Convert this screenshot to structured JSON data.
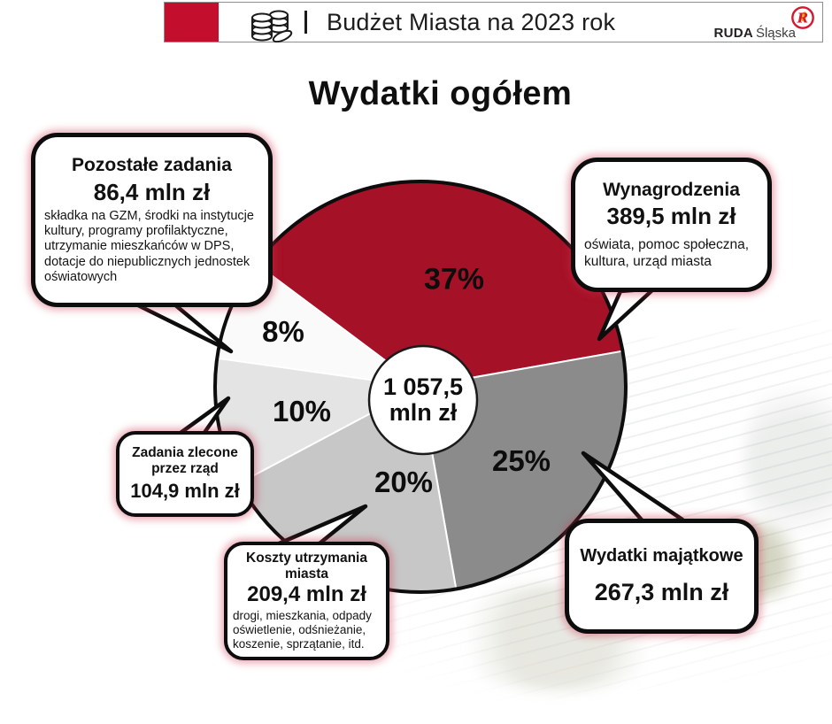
{
  "header": {
    "title": "Budżet Miasta na 2023 rok",
    "separator": "|",
    "accent_color": "#c30e2d",
    "icons": {
      "coins": "stacked-coins-outline",
      "emblem": "ruda-slaska-round-emblem"
    },
    "logo": {
      "brand_bold": "RUDA",
      "brand_light": "Śląska",
      "emblem_letter": "R"
    }
  },
  "page_title": "Wydatki ogółem",
  "chart_data": {
    "type": "pie",
    "title": "Wydatki ogółem",
    "total_label_line1": "1 057,5",
    "total_label_line2": "mln zł",
    "total_value_mln": 1057.5,
    "units": "mln zł",
    "legend_position": "none",
    "labels_inside_slices": true,
    "start_angle_deg": -53.2,
    "slices": [
      {
        "name": "Wynagrodzenia",
        "percent": 37,
        "pct_display": "37%",
        "amount_mln": 389.5,
        "amount": "389,5 mln zł",
        "color": "#a51126",
        "note": "oświata, pomoc społeczna, kultura, urząd miasta"
      },
      {
        "name": "Wydatki majątkowe",
        "percent": 25,
        "pct_display": "25%",
        "amount_mln": 267.3,
        "amount": "267,3 mln zł",
        "color": "#8b8b8b"
      },
      {
        "name": "Koszty utrzymania miasta",
        "percent": 20,
        "pct_display": "20%",
        "amount_mln": 209.4,
        "amount": "209,4 mln zł",
        "color": "#c7c7c7",
        "note": "drogi, mieszkania, odpady oświetlenie, odśnieżanie, koszenie, sprzątanie, itd."
      },
      {
        "name": "Zadania zlecone przez rząd",
        "percent": 10,
        "pct_display": "10%",
        "amount_mln": 104.9,
        "amount": "104,9 mln zł",
        "color": "#e4e4e4"
      },
      {
        "name": "Pozostałe zadania",
        "percent": 8,
        "pct_display": "8%",
        "amount_mln": 86.4,
        "amount": "86,4 mln zł",
        "color": "#fafafa",
        "note": "składka na GZM, środki na instytucje kultury, programy profilaktyczne, utrzymanie mieszkańców w DPS, dotacje do niepublicznych jednostek oświatowych"
      }
    ]
  },
  "callouts": {
    "pozostale": {
      "title": "Pozostałe zadania",
      "amount": "86,4 mln zł",
      "desc": "składka na GZM, środki na instytucje kultury, programy profilaktyczne, utrzymanie mieszkańców w DPS, dotacje do niepublicznych jednostek oświatowych"
    },
    "wynagrodzenia": {
      "title": "Wynagrodzenia",
      "amount": "389,5 mln zł",
      "desc": "oświata, pomoc społeczna, kultura, urząd miasta"
    },
    "zadania": {
      "title": "Zadania zlecone przez rząd",
      "amount": "104,9 mln zł"
    },
    "koszty": {
      "title": "Koszty utrzymania miasta",
      "amount": "209,4 mln zł",
      "desc": "drogi, mieszkania, odpady oświetlenie, odśnieżanie, koszenie, sprzątanie, itd."
    },
    "majatkowe": {
      "title": "Wydatki majątkowe",
      "amount": "267,3 mln zł"
    }
  }
}
